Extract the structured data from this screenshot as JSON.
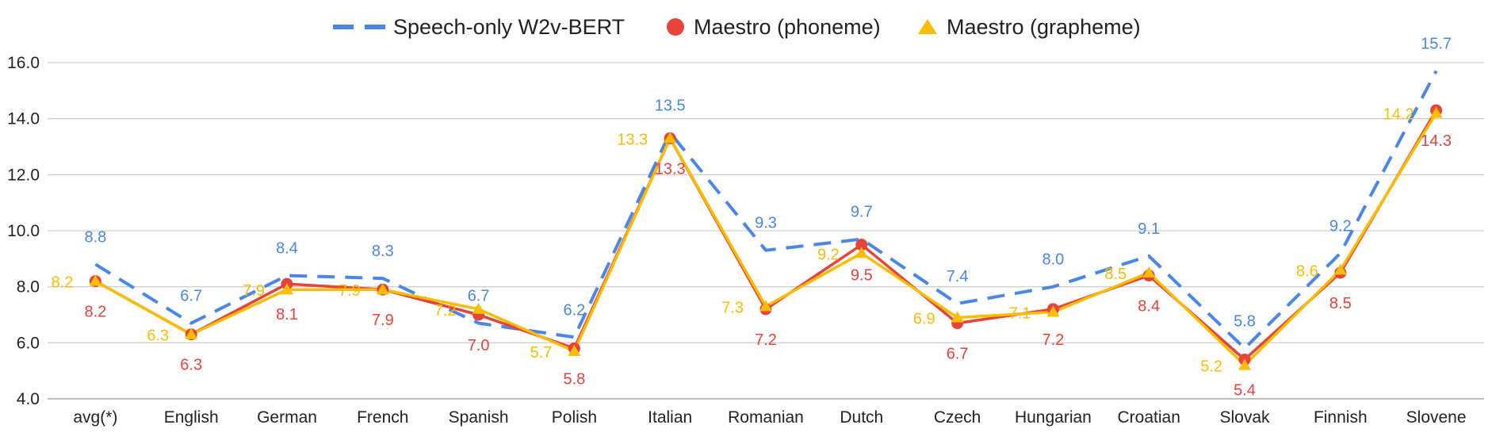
{
  "chart_data": {
    "type": "line",
    "title": "",
    "xlabel": "",
    "ylabel": "",
    "ylim": [
      4.0,
      16.0
    ],
    "yticks": [
      "4.0",
      "6.0",
      "8.0",
      "10.0",
      "12.0",
      "14.0",
      "16.0"
    ],
    "grid": true,
    "legend_position": "top",
    "categories": [
      "avg(*)",
      "English",
      "German",
      "French",
      "Spanish",
      "Polish",
      "Italian",
      "Romanian",
      "Dutch",
      "Czech",
      "Hungarian",
      "Croatian",
      "Slovak",
      "Finnish",
      "Slovene"
    ],
    "series": [
      {
        "name": "Speech-only W2v-BERT",
        "color": "#4a86e8",
        "style": "dashed",
        "marker": "none",
        "values": [
          8.8,
          6.7,
          8.4,
          8.3,
          6.7,
          6.2,
          13.5,
          9.3,
          9.7,
          7.4,
          8.0,
          9.1,
          5.8,
          9.2,
          15.7
        ],
        "labels": [
          "8.8",
          "6.7",
          "8.4",
          "8.3",
          "6.7",
          "6.2",
          "13.5",
          "9.3",
          "9.7",
          "7.4",
          "8.0",
          "9.1",
          "5.8",
          "9.2",
          "15.7"
        ]
      },
      {
        "name": "Maestro (phoneme)",
        "color": "#e8423a",
        "style": "solid",
        "marker": "circle",
        "values": [
          8.2,
          6.3,
          8.1,
          7.9,
          7.0,
          5.8,
          13.3,
          7.2,
          9.5,
          6.7,
          7.2,
          8.4,
          5.4,
          8.5,
          14.3
        ],
        "labels": [
          "8.2",
          "6.3",
          "8.1",
          "7.9",
          "7.0",
          "5.8",
          "13.3",
          "7.2",
          "9.5",
          "6.7",
          "7.2",
          "8.4",
          "5.4",
          "8.5",
          "14.3"
        ]
      },
      {
        "name": "Maestro (grapheme)",
        "color": "#fbbc04",
        "style": "solid",
        "marker": "triangle",
        "values": [
          8.2,
          6.3,
          7.9,
          7.9,
          7.2,
          5.7,
          13.3,
          7.3,
          9.2,
          6.9,
          7.1,
          8.5,
          5.2,
          8.6,
          14.2
        ],
        "labels": [
          "8.2",
          "6.3",
          "7.9",
          "7.9",
          "7.2",
          "5.7",
          "13.3",
          "7.3",
          "9.2",
          "6.9",
          "7.1",
          "8.5",
          "5.2",
          "8.6",
          "14.2"
        ]
      }
    ]
  }
}
